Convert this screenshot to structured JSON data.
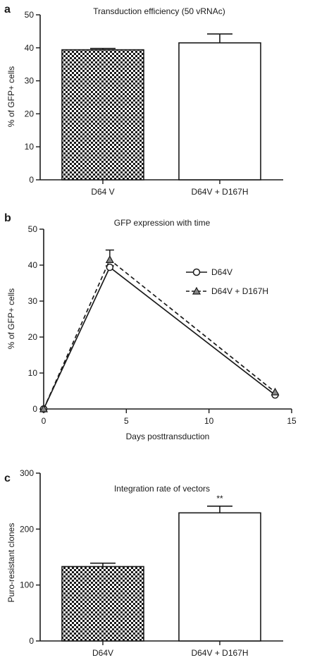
{
  "chart_data": [
    {
      "panel": "a",
      "type": "bar",
      "title": "Transduction efficiency (50 vRNAc)",
      "xlabel": "",
      "ylabel": "% of GFP+ cells",
      "ylim": [
        0,
        50
      ],
      "yticks": [
        0,
        10,
        20,
        30,
        40,
        50
      ],
      "categories": [
        "D64 V",
        "D64V + D167H"
      ],
      "values": [
        39.4,
        41.5
      ],
      "errors": [
        0.4,
        2.7
      ],
      "fills": [
        "checker",
        "white"
      ],
      "annotations": []
    },
    {
      "panel": "b",
      "type": "line",
      "title": "GFP expression with time",
      "xlabel": "Days posttransduction",
      "ylabel": "% of GFP+ cells",
      "xlim": [
        0,
        15
      ],
      "ylim": [
        0,
        50
      ],
      "xticks": [
        0,
        5,
        10,
        15
      ],
      "yticks": [
        0,
        10,
        20,
        30,
        40,
        50
      ],
      "legend_position": "top-right",
      "series": [
        {
          "name": "D64V",
          "marker": "circle",
          "dash": "solid",
          "x": [
            0,
            4,
            14
          ],
          "y": [
            0,
            39.4,
            3.9
          ],
          "errors": [
            0,
            0.4,
            0
          ]
        },
        {
          "name": "D64V + D167H",
          "marker": "triangle",
          "dash": "dashed",
          "x": [
            0,
            4,
            14
          ],
          "y": [
            0,
            41.5,
            4.7
          ],
          "errors": [
            0,
            2.7,
            0
          ]
        }
      ]
    },
    {
      "panel": "c",
      "type": "bar",
      "title": "Integration rate of vectors",
      "xlabel": "",
      "ylabel": "Puro-resistant clones",
      "ylim": [
        0,
        300
      ],
      "yticks": [
        0,
        100,
        200,
        300
      ],
      "categories": [
        "D64V",
        "D64V + D167H"
      ],
      "values": [
        133,
        229
      ],
      "errors": [
        6,
        12
      ],
      "fills": [
        "checker",
        "white"
      ],
      "annotations": [
        "",
        "**"
      ]
    }
  ],
  "colors": {
    "ink": "#1a1a1a",
    "checker": "#1a1a1a",
    "background": "#ffffff"
  }
}
